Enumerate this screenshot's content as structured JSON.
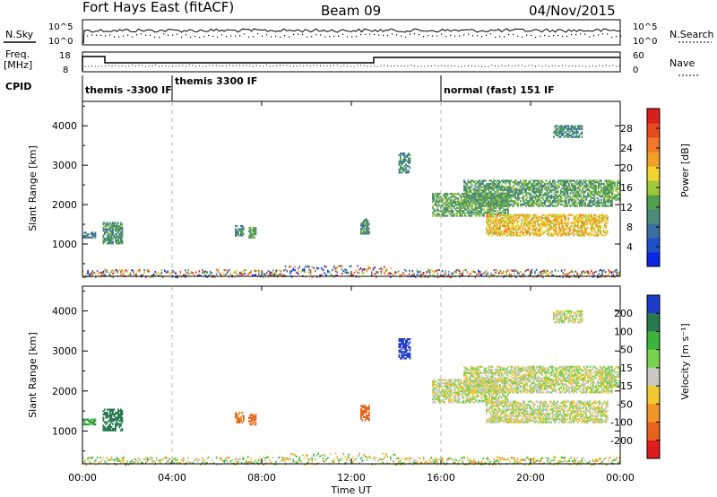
{
  "header": {
    "station": "Fort Hays East (fitACF)",
    "beam": "Beam 09",
    "date": "04/Nov/2015"
  },
  "strip_panels": {
    "nsky_label": "N.Sky",
    "nsky_ticks": [
      "10^5",
      "10^0"
    ],
    "nsearch_label": "N.Search",
    "nsearch_ticks": [
      "10^5",
      "10^0"
    ],
    "freq_label": "Freq.",
    "freq_unit": "[MHz]",
    "freq_ticks": [
      "18",
      "8"
    ],
    "nave_label": "Nave",
    "nave_ticks": [
      "60",
      "0"
    ],
    "cpid_label": "CPID",
    "cpid_segments": [
      {
        "label": "themis -3300 IF",
        "start_hour": 0
      },
      {
        "label": "themis 3300 IF",
        "start_hour": 4
      },
      {
        "label": "normal (fast) 151 IF",
        "start_hour": 16
      }
    ]
  },
  "chart_data": [
    {
      "type": "heatmap",
      "name": "Power",
      "xlabel": "",
      "ylabel": "Slant Range [km]",
      "x_ticks": [
        "00:00",
        "04:00",
        "08:00",
        "12:00",
        "16:00",
        "20:00",
        "00:00"
      ],
      "xlim_hours": [
        0,
        24
      ],
      "y_ticks": [
        "1000",
        "2000",
        "3000",
        "4000"
      ],
      "ylim_km": [
        180,
        4620
      ],
      "colorbar": {
        "label": "Power [dB]",
        "ticks": [
          "4",
          "8",
          "12",
          "16",
          "20",
          "24",
          "28"
        ],
        "colors": [
          "#0a28e6",
          "#1e50c8",
          "#3c6ea0",
          "#4b8c78",
          "#50a050",
          "#a0c83c",
          "#f0d232",
          "#f0a028",
          "#f07828",
          "#e64b1e",
          "#dc1e1e"
        ]
      },
      "regions": [
        {
          "t": [
            0.0,
            0.6
          ],
          "r": [
            1150,
            1300
          ],
          "v": 8
        },
        {
          "t": [
            0.9,
            1.8
          ],
          "r": [
            1000,
            1550
          ],
          "v": 10
        },
        {
          "t": [
            6.8,
            7.2
          ],
          "r": [
            1200,
            1450
          ],
          "v": 9
        },
        {
          "t": [
            7.4,
            7.7
          ],
          "r": [
            1150,
            1400
          ],
          "v": 11
        },
        {
          "t": [
            12.4,
            12.8
          ],
          "r": [
            1250,
            1650
          ],
          "v": 10
        },
        {
          "t": [
            14.1,
            14.6
          ],
          "r": [
            2800,
            3300
          ],
          "v": 9
        },
        {
          "t": [
            15.6,
            19.0
          ],
          "r": [
            1700,
            2300
          ],
          "v": 12
        },
        {
          "t": [
            18.0,
            23.4
          ],
          "r": [
            1200,
            1750
          ],
          "v": 19
        },
        {
          "t": [
            17.0,
            23.6
          ],
          "r": [
            1950,
            2600
          ],
          "v": 11
        },
        {
          "t": [
            21.0,
            22.3
          ],
          "r": [
            3700,
            4000
          ],
          "v": 9
        },
        {
          "t": [
            23.3,
            24.0
          ],
          "r": [
            2100,
            2600
          ],
          "v": 13
        }
      ],
      "ground_scatter_band": {
        "t": [
          0.0,
          24.0
        ],
        "r": [
          180,
          420
        ]
      }
    },
    {
      "type": "heatmap",
      "name": "Velocity",
      "xlabel": "Time UT",
      "ylabel": "Slant Range [km]",
      "x_ticks": [
        "00:00",
        "04:00",
        "08:00",
        "12:00",
        "16:00",
        "20:00",
        "00:00"
      ],
      "xlim_hours": [
        0,
        24
      ],
      "y_ticks": [
        "1000",
        "2000",
        "3000",
        "4000"
      ],
      "ylim_km": [
        180,
        4620
      ],
      "colorbar": {
        "label": "Velocity [m s⁻¹]",
        "ticks": [
          "200",
          "100",
          "50",
          "15",
          "-15",
          "-50",
          "-100",
          "-200"
        ],
        "colors": [
          "#1e3cc8",
          "#287850",
          "#3cb43c",
          "#78d250",
          "#c8c8c0",
          "#f0c832",
          "#f09628",
          "#e6641e",
          "#dc1e1e"
        ]
      },
      "regions": [
        {
          "t": [
            0.0,
            0.6
          ],
          "r": [
            1150,
            1300
          ],
          "v": 60
        },
        {
          "t": [
            0.9,
            1.8
          ],
          "r": [
            1000,
            1550
          ],
          "v": 120
        },
        {
          "t": [
            6.8,
            7.2
          ],
          "r": [
            1200,
            1450
          ],
          "v": -80
        },
        {
          "t": [
            7.4,
            7.7
          ],
          "r": [
            1150,
            1400
          ],
          "v": -90
        },
        {
          "t": [
            12.4,
            12.8
          ],
          "r": [
            1250,
            1650
          ],
          "v": -100
        },
        {
          "t": [
            14.1,
            14.6
          ],
          "r": [
            2800,
            3300
          ],
          "v": 180
        },
        {
          "t": [
            15.6,
            19.0
          ],
          "r": [
            1700,
            2300
          ],
          "v": 0
        },
        {
          "t": [
            18.0,
            23.4
          ],
          "r": [
            1200,
            1750
          ],
          "v": 0
        },
        {
          "t": [
            17.0,
            23.6
          ],
          "r": [
            1950,
            2600
          ],
          "v": 0
        },
        {
          "t": [
            21.0,
            22.3
          ],
          "r": [
            3700,
            4000
          ],
          "v": 0
        },
        {
          "t": [
            23.3,
            24.0
          ],
          "r": [
            2100,
            2600
          ],
          "v": 5
        }
      ],
      "ground_scatter_band": {
        "t": [
          0.0,
          24.0
        ],
        "r": [
          180,
          420
        ]
      }
    }
  ]
}
